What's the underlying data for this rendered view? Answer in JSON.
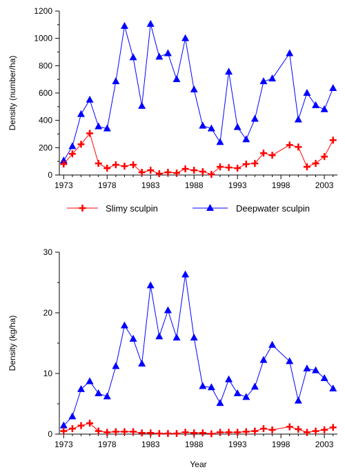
{
  "colors": {
    "slimy": "#ff0000",
    "deepwater": "#0000ff",
    "axis": "#000000"
  },
  "legend": {
    "slimy_label": "Slimy sculpin",
    "deepwater_label": "Deepwater sculpin"
  },
  "chart_data": [
    {
      "type": "line",
      "ylabel": "Density (number/ha)",
      "xlabel": "",
      "xlim": [
        1972.5,
        2004.5
      ],
      "ylim": [
        0,
        1200
      ],
      "xticks": [
        1973,
        1978,
        1983,
        1988,
        1993,
        1998,
        2003
      ],
      "yticks": [
        0,
        200,
        400,
        600,
        800,
        1000,
        1200
      ],
      "grid": false,
      "legend_position": "below",
      "series": [
        {
          "name": "Slimy sculpin",
          "marker": "plus",
          "x": [
            1973,
            1974,
            1975,
            1976,
            1977,
            1978,
            1979,
            1980,
            1981,
            1982,
            1983,
            1984,
            1985,
            1986,
            1987,
            1988,
            1989,
            1990,
            1991,
            1992,
            1993,
            1994,
            1995,
            1996,
            1997,
            1999,
            2000,
            2001,
            2002,
            2003,
            2004
          ],
          "values": [
            80,
            155,
            225,
            305,
            85,
            50,
            75,
            65,
            75,
            20,
            35,
            10,
            20,
            15,
            45,
            35,
            25,
            5,
            60,
            55,
            50,
            80,
            85,
            160,
            145,
            220,
            205,
            60,
            85,
            135,
            255
          ]
        },
        {
          "name": "Deepwater sculpin",
          "marker": "triangle",
          "x": [
            1973,
            1974,
            1975,
            1976,
            1977,
            1978,
            1979,
            1980,
            1981,
            1982,
            1983,
            1984,
            1985,
            1986,
            1987,
            1988,
            1989,
            1990,
            1991,
            1992,
            1993,
            1994,
            1995,
            1996,
            1997,
            1999,
            2000,
            2001,
            2002,
            2003,
            2004
          ],
          "values": [
            105,
            210,
            445,
            550,
            355,
            340,
            685,
            1090,
            860,
            505,
            1105,
            865,
            890,
            700,
            1000,
            625,
            360,
            340,
            240,
            755,
            350,
            260,
            410,
            685,
            705,
            890,
            405,
            600,
            510,
            480,
            635
          ]
        }
      ]
    },
    {
      "type": "line",
      "ylabel": "Density (kg/ha)",
      "xlabel": "Year",
      "xlim": [
        1972.5,
        2004.5
      ],
      "ylim": [
        0,
        30
      ],
      "xticks": [
        1973,
        1978,
        1983,
        1988,
        1993,
        1998,
        2003
      ],
      "yticks": [
        0,
        10,
        20,
        30
      ],
      "grid": false,
      "series": [
        {
          "name": "Slimy sculpin",
          "marker": "plus",
          "x": [
            1973,
            1974,
            1975,
            1976,
            1977,
            1978,
            1979,
            1980,
            1981,
            1982,
            1983,
            1984,
            1985,
            1986,
            1987,
            1988,
            1989,
            1990,
            1991,
            1992,
            1993,
            1994,
            1995,
            1996,
            1997,
            1999,
            2000,
            2001,
            2002,
            2003,
            2004
          ],
          "values": [
            0.5,
            0.9,
            1.4,
            1.8,
            0.5,
            0.3,
            0.4,
            0.4,
            0.4,
            0.2,
            0.2,
            0.1,
            0.1,
            0.1,
            0.3,
            0.2,
            0.2,
            0.05,
            0.3,
            0.3,
            0.3,
            0.4,
            0.5,
            0.9,
            0.7,
            1.2,
            0.8,
            0.3,
            0.5,
            0.7,
            1.1
          ]
        },
        {
          "name": "Deepwater sculpin",
          "marker": "triangle",
          "x": [
            1973,
            1974,
            1975,
            1976,
            1977,
            1978,
            1979,
            1980,
            1981,
            1982,
            1983,
            1984,
            1985,
            1986,
            1987,
            1988,
            1989,
            1990,
            1991,
            1992,
            1993,
            1994,
            1995,
            1996,
            1997,
            1999,
            2000,
            2001,
            2002,
            2003,
            2004
          ],
          "values": [
            1.4,
            2.9,
            7.4,
            8.7,
            6.7,
            6.2,
            11.2,
            17.9,
            15.7,
            11.6,
            24.5,
            16.1,
            20.4,
            15.9,
            26.3,
            15.9,
            7.9,
            7.7,
            5.1,
            9.0,
            6.7,
            6.1,
            7.8,
            12.2,
            14.7,
            12.0,
            5.5,
            10.8,
            10.5,
            9.2,
            7.5
          ]
        }
      ]
    }
  ]
}
